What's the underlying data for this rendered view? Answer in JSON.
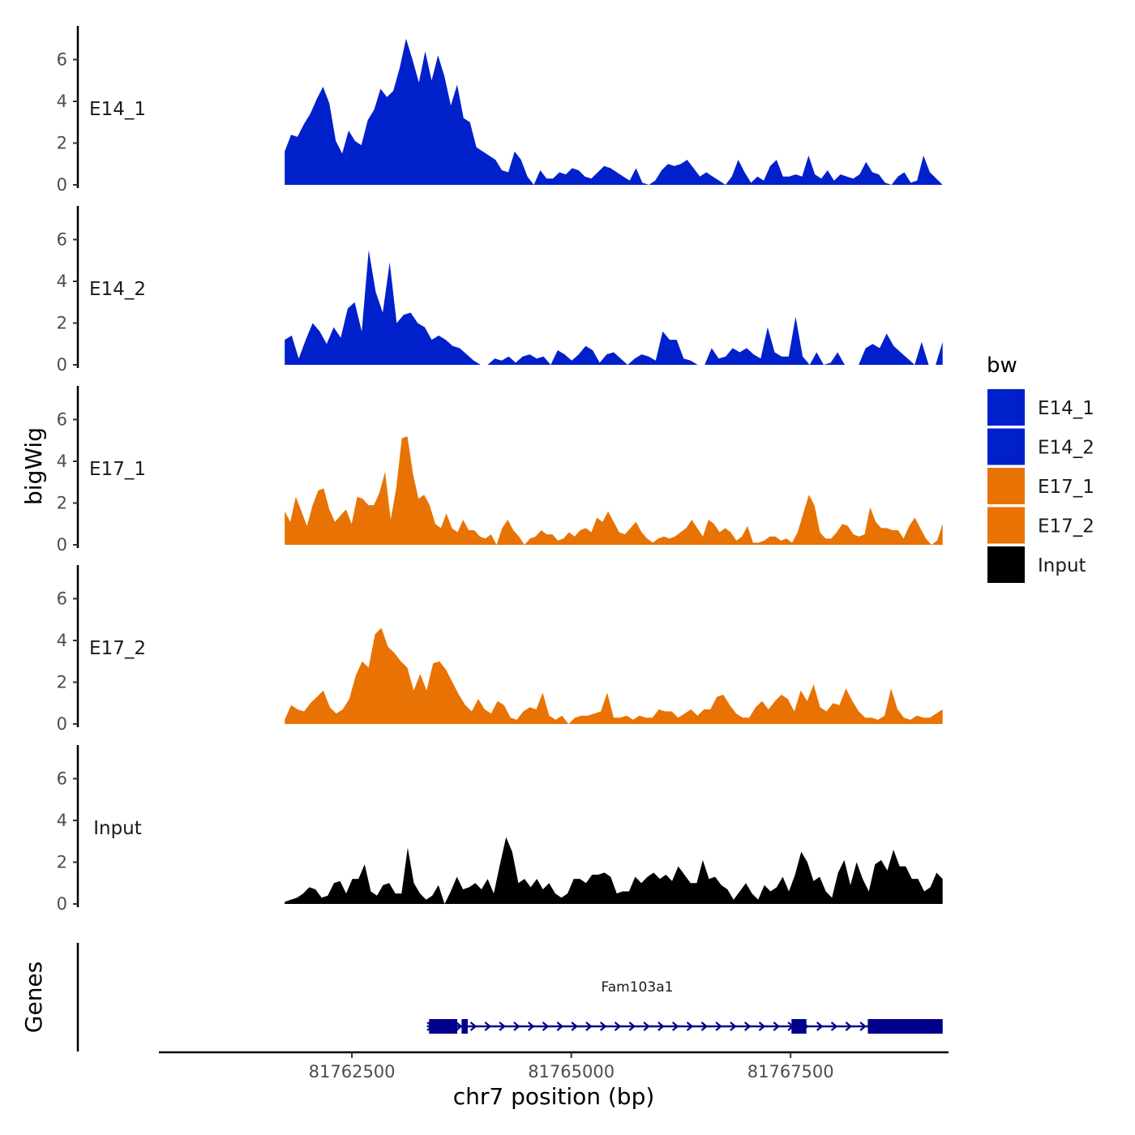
{
  "chart_data": {
    "type": "area",
    "chromosome": "chr7",
    "xlabel": "chr7 position (bp)",
    "ylabel": "bigWig",
    "gene_track_label": "Genes",
    "xlim": [
      81760300,
      81769300
    ],
    "x_ticks": [
      81762500,
      81765000,
      81767500
    ],
    "x_tick_labels": [
      "81762500",
      "81765000",
      "81767500"
    ],
    "ylim": [
      0,
      7.3
    ],
    "y_ticks": [
      0,
      2,
      4,
      6
    ],
    "y_tick_labels": [
      "0",
      "2",
      "4",
      "6"
    ],
    "legend": {
      "title": "bw",
      "position": "right",
      "entries": [
        "E14_1",
        "E14_2",
        "E17_1",
        "E17_2",
        "Input"
      ]
    },
    "colors": {
      "E14_1": "#0020cc",
      "E14_2": "#0020cc",
      "E17_1": "#e87304",
      "E17_2": "#e87304",
      "Input": "#000000",
      "gene": "#00008b"
    },
    "x_range": [
      81761734,
      81769233
    ],
    "series": [
      {
        "name": "E14_1",
        "label": "E14_1",
        "values": [
          1.6,
          2.4,
          2.3,
          2.9,
          3.4,
          4.1,
          4.7,
          3.9,
          2.1,
          1.5,
          2.6,
          2.1,
          1.9,
          3.1,
          3.6,
          4.6,
          4.2,
          4.5,
          5.6,
          7.0,
          6.0,
          4.9,
          6.4,
          5.0,
          6.2,
          5.2,
          3.8,
          4.8,
          3.2,
          3.0,
          1.8,
          1.6,
          1.4,
          1.2,
          0.7,
          0.6,
          1.6,
          1.2,
          0.4,
          0.0,
          0.7,
          0.3,
          0.3,
          0.6,
          0.5,
          0.8,
          0.7,
          0.4,
          0.3,
          0.6,
          0.9,
          0.8,
          0.6,
          0.4,
          0.2,
          0.8,
          0.1,
          0.0,
          0.2,
          0.7,
          1.0,
          0.9,
          1.0,
          1.2,
          0.8,
          0.4,
          0.6,
          0.4,
          0.2,
          0.0,
          0.4,
          1.2,
          0.6,
          0.1,
          0.4,
          0.2,
          0.9,
          1.2,
          0.4,
          0.4,
          0.5,
          0.4,
          1.4,
          0.5,
          0.3,
          0.7,
          0.2,
          0.5,
          0.4,
          0.3,
          0.5,
          1.1,
          0.6,
          0.5,
          0.1,
          0.0,
          0.4,
          0.6,
          0.1,
          0.2,
          1.4,
          0.6,
          0.3,
          0.0
        ]
      },
      {
        "name": "E14_2",
        "label": "E14_2",
        "values": [
          1.2,
          1.4,
          0.3,
          1.2,
          2.0,
          1.6,
          1.0,
          1.8,
          1.3,
          2.7,
          3.0,
          1.6,
          5.5,
          3.5,
          2.5,
          4.9,
          2.0,
          2.4,
          2.5,
          2.0,
          1.8,
          1.2,
          1.4,
          1.2,
          0.9,
          0.8,
          0.5,
          0.2,
          0.0,
          0.0,
          0.3,
          0.2,
          0.4,
          0.1,
          0.4,
          0.5,
          0.3,
          0.4,
          0.0,
          0.7,
          0.5,
          0.2,
          0.5,
          0.9,
          0.7,
          0.1,
          0.5,
          0.6,
          0.3,
          0.0,
          0.3,
          0.5,
          0.4,
          0.2,
          1.6,
          1.2,
          1.2,
          0.3,
          0.2,
          0.0,
          0.0,
          0.8,
          0.3,
          0.4,
          0.8,
          0.6,
          0.8,
          0.5,
          0.3,
          1.8,
          0.6,
          0.4,
          0.4,
          2.3,
          0.4,
          0.0,
          0.6,
          0.0,
          0.1,
          0.6,
          0.0,
          0.0,
          0.0,
          0.8,
          1.0,
          0.8,
          1.5,
          0.9,
          0.6,
          0.3,
          0.0,
          1.1,
          0.0,
          0.0,
          1.1
        ]
      },
      {
        "name": "E17_1",
        "label": "E17_1",
        "values": [
          1.6,
          1.1,
          2.3,
          1.6,
          0.9,
          1.9,
          2.6,
          2.7,
          1.7,
          1.1,
          1.4,
          1.7,
          1.0,
          2.3,
          2.2,
          1.9,
          1.9,
          2.5,
          3.5,
          1.2,
          2.7,
          5.1,
          5.2,
          3.4,
          2.2,
          2.4,
          1.9,
          1.0,
          0.8,
          1.5,
          0.8,
          0.6,
          1.2,
          0.7,
          0.7,
          0.4,
          0.3,
          0.5,
          0.0,
          0.8,
          1.2,
          0.7,
          0.4,
          0.0,
          0.3,
          0.4,
          0.7,
          0.5,
          0.5,
          0.2,
          0.3,
          0.6,
          0.4,
          0.7,
          0.8,
          0.6,
          1.3,
          1.1,
          1.6,
          1.1,
          0.6,
          0.5,
          0.8,
          1.1,
          0.6,
          0.3,
          0.1,
          0.3,
          0.4,
          0.3,
          0.4,
          0.6,
          0.8,
          1.2,
          0.8,
          0.4,
          1.2,
          1.0,
          0.6,
          0.8,
          0.6,
          0.2,
          0.4,
          0.9,
          0.1,
          0.1,
          0.2,
          0.4,
          0.4,
          0.2,
          0.3,
          0.1,
          0.6,
          1.5,
          2.4,
          1.9,
          0.6,
          0.3,
          0.3,
          0.6,
          1.0,
          0.9,
          0.5,
          0.4,
          0.5,
          1.8,
          1.1,
          0.8,
          0.8,
          0.7,
          0.7,
          0.3,
          0.9,
          1.3,
          0.8,
          0.3,
          0.0,
          0.2,
          1.0
        ]
      },
      {
        "name": "E17_2",
        "label": "E17_2",
        "values": [
          0.2,
          0.9,
          0.7,
          0.6,
          1.0,
          1.3,
          1.6,
          0.8,
          0.5,
          0.7,
          1.2,
          2.3,
          3.0,
          2.7,
          4.3,
          4.6,
          3.7,
          3.4,
          3.0,
          2.7,
          1.6,
          2.4,
          1.6,
          2.9,
          3.0,
          2.6,
          2.0,
          1.4,
          0.9,
          0.6,
          1.2,
          0.7,
          0.5,
          1.1,
          0.9,
          0.3,
          0.2,
          0.6,
          0.8,
          0.7,
          1.5,
          0.4,
          0.2,
          0.4,
          0.0,
          0.3,
          0.4,
          0.4,
          0.5,
          0.6,
          1.5,
          0.3,
          0.3,
          0.4,
          0.2,
          0.4,
          0.3,
          0.3,
          0.7,
          0.6,
          0.6,
          0.3,
          0.5,
          0.7,
          0.4,
          0.7,
          0.7,
          1.3,
          1.4,
          0.9,
          0.5,
          0.3,
          0.3,
          0.8,
          1.1,
          0.7,
          1.1,
          1.4,
          1.2,
          0.6,
          1.6,
          1.1,
          1.9,
          0.8,
          0.6,
          1.0,
          0.9,
          1.7,
          1.1,
          0.6,
          0.3,
          0.3,
          0.2,
          0.4,
          1.7,
          0.7,
          0.3,
          0.2,
          0.4,
          0.3,
          0.3,
          0.5,
          0.7
        ]
      },
      {
        "name": "Input",
        "label": "Input",
        "values": [
          0.1,
          0.2,
          0.3,
          0.5,
          0.8,
          0.7,
          0.3,
          0.4,
          1.0,
          1.1,
          0.5,
          1.2,
          1.2,
          1.9,
          0.6,
          0.4,
          0.9,
          1.0,
          0.5,
          0.5,
          2.7,
          1.0,
          0.5,
          0.2,
          0.4,
          0.9,
          0.0,
          0.6,
          1.3,
          0.7,
          0.8,
          1.0,
          0.7,
          1.2,
          0.5,
          1.9,
          3.2,
          2.5,
          1.0,
          1.2,
          0.8,
          1.2,
          0.7,
          1.0,
          0.5,
          0.3,
          0.5,
          1.2,
          1.2,
          1.0,
          1.4,
          1.4,
          1.5,
          1.3,
          0.5,
          0.6,
          0.6,
          1.3,
          1.0,
          1.3,
          1.5,
          1.2,
          1.4,
          1.1,
          1.8,
          1.4,
          1.0,
          1.0,
          2.1,
          1.2,
          1.3,
          0.9,
          0.7,
          0.2,
          0.6,
          1.0,
          0.5,
          0.2,
          0.9,
          0.6,
          0.8,
          1.3,
          0.6,
          1.4,
          2.5,
          2.0,
          1.1,
          1.3,
          0.6,
          0.3,
          1.5,
          2.1,
          0.9,
          2.0,
          1.2,
          0.6,
          1.9,
          2.1,
          1.6,
          2.6,
          1.8,
          1.8,
          1.2,
          1.2,
          0.6,
          0.8,
          1.5,
          1.2
        ]
      }
    ],
    "gene": {
      "name": "Fam103a1",
      "start": 81763355,
      "end": 81769233,
      "strand": "+",
      "exons": [
        [
          81763380,
          81763700
        ],
        [
          81763750,
          81763820
        ],
        [
          81767510,
          81767680
        ],
        [
          81768380,
          81769233
        ]
      ]
    }
  }
}
